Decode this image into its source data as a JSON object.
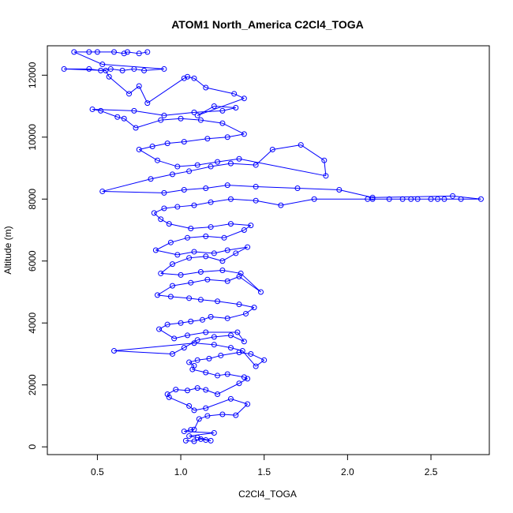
{
  "chart_data": {
    "type": "scatter",
    "title": "ATOM1 North_America C2Cl4_TOGA",
    "xlabel": "C2Cl4_TOGA",
    "ylabel": "Altitude (m)",
    "xlim": [
      0.2,
      2.85
    ],
    "ylim": [
      -250,
      12950
    ],
    "xticks": [
      0.5,
      1.0,
      1.5,
      2.0,
      2.5
    ],
    "xtick_labels": [
      "0.5",
      "1.0",
      "1.5",
      "2.0",
      "2.5"
    ],
    "yticks": [
      0,
      2000,
      4000,
      6000,
      8000,
      10000,
      12000
    ],
    "ytick_labels": [
      "0",
      "2000",
      "4000",
      "6000",
      "8000",
      "10000",
      "12000"
    ],
    "grid": false,
    "color": "#0000ff",
    "series": [
      {
        "points": [
          [
            1.03,
            200
          ],
          [
            1.08,
            180
          ],
          [
            1.12,
            250
          ],
          [
            1.15,
            220
          ],
          [
            1.18,
            200
          ],
          [
            1.1,
            300
          ],
          [
            1.05,
            350
          ],
          [
            1.2,
            450
          ],
          [
            1.02,
            500
          ],
          [
            1.06,
            550
          ],
          [
            1.08,
            560
          ],
          [
            1.11,
            900
          ],
          [
            1.16,
            1000
          ],
          [
            1.25,
            1050
          ],
          [
            1.33,
            1020
          ],
          [
            1.4,
            1380
          ],
          [
            1.3,
            1550
          ],
          [
            1.15,
            1250
          ],
          [
            1.08,
            1180
          ],
          [
            1.05,
            1320
          ],
          [
            0.93,
            1600
          ],
          [
            0.92,
            1700
          ],
          [
            0.97,
            1850
          ],
          [
            1.04,
            1820
          ],
          [
            1.1,
            1900
          ],
          [
            1.15,
            1840
          ],
          [
            1.22,
            1700
          ],
          [
            1.35,
            2050
          ],
          [
            1.4,
            2200
          ],
          [
            1.38,
            2250
          ],
          [
            1.28,
            2350
          ],
          [
            1.22,
            2300
          ],
          [
            1.15,
            2400
          ],
          [
            1.07,
            2500
          ],
          [
            1.08,
            2620
          ],
          [
            1.05,
            2730
          ],
          [
            1.1,
            2800
          ],
          [
            1.17,
            2850
          ],
          [
            1.24,
            2950
          ],
          [
            1.35,
            3050
          ],
          [
            1.42,
            3000
          ],
          [
            1.5,
            2800
          ],
          [
            1.45,
            2600
          ],
          [
            1.37,
            3100
          ],
          [
            1.3,
            3200
          ],
          [
            1.2,
            3300
          ],
          [
            1.08,
            3350
          ],
          [
            0.6,
            3100
          ],
          [
            0.95,
            3000
          ],
          [
            1.02,
            3200
          ],
          [
            1.1,
            3450
          ],
          [
            1.2,
            3550
          ],
          [
            1.3,
            3600
          ],
          [
            1.38,
            3400
          ],
          [
            1.34,
            3700
          ],
          [
            1.15,
            3700
          ],
          [
            1.04,
            3600
          ],
          [
            0.96,
            3500
          ],
          [
            0.87,
            3800
          ],
          [
            0.92,
            3950
          ],
          [
            1.0,
            4000
          ],
          [
            1.06,
            4050
          ],
          [
            1.13,
            4100
          ],
          [
            1.18,
            4200
          ],
          [
            1.28,
            4150
          ],
          [
            1.39,
            4300
          ],
          [
            1.44,
            4500
          ],
          [
            1.35,
            4600
          ],
          [
            1.22,
            4700
          ],
          [
            1.12,
            4750
          ],
          [
            1.05,
            4800
          ],
          [
            0.94,
            4850
          ],
          [
            0.86,
            4900
          ],
          [
            0.95,
            5200
          ],
          [
            1.06,
            5300
          ],
          [
            1.16,
            5400
          ],
          [
            1.28,
            5350
          ],
          [
            1.35,
            5500
          ],
          [
            1.48,
            5000
          ],
          [
            1.36,
            5600
          ],
          [
            1.25,
            5700
          ],
          [
            1.12,
            5650
          ],
          [
            1.0,
            5550
          ],
          [
            0.88,
            5600
          ],
          [
            0.95,
            5900
          ],
          [
            1.05,
            6100
          ],
          [
            1.15,
            6150
          ],
          [
            1.25,
            6000
          ],
          [
            1.33,
            6250
          ],
          [
            1.4,
            6450
          ],
          [
            1.28,
            6350
          ],
          [
            1.2,
            6250
          ],
          [
            1.08,
            6300
          ],
          [
            0.98,
            6200
          ],
          [
            0.85,
            6350
          ],
          [
            0.94,
            6600
          ],
          [
            1.04,
            6750
          ],
          [
            1.15,
            6800
          ],
          [
            1.26,
            6750
          ],
          [
            1.38,
            7000
          ],
          [
            1.42,
            7150
          ],
          [
            1.3,
            7200
          ],
          [
            1.18,
            7100
          ],
          [
            1.06,
            7050
          ],
          [
            0.93,
            7200
          ],
          [
            0.88,
            7350
          ],
          [
            0.84,
            7550
          ],
          [
            0.9,
            7700
          ],
          [
            0.98,
            7750
          ],
          [
            1.08,
            7800
          ],
          [
            1.18,
            7900
          ],
          [
            1.3,
            8000
          ],
          [
            1.45,
            7950
          ],
          [
            1.6,
            7800
          ],
          [
            1.8,
            8000
          ],
          [
            2.12,
            8000
          ],
          [
            2.15,
            8000
          ],
          [
            2.25,
            8000
          ],
          [
            2.33,
            8000
          ],
          [
            2.38,
            8000
          ],
          [
            2.42,
            8000
          ],
          [
            2.5,
            8000
          ],
          [
            2.54,
            8000
          ],
          [
            2.58,
            8000
          ],
          [
            2.68,
            8000
          ],
          [
            2.8,
            8000
          ],
          [
            2.63,
            8100
          ],
          [
            2.15,
            8050
          ],
          [
            1.95,
            8300
          ],
          [
            1.7,
            8350
          ],
          [
            1.45,
            8400
          ],
          [
            1.28,
            8450
          ],
          [
            1.15,
            8350
          ],
          [
            1.02,
            8300
          ],
          [
            0.9,
            8200
          ],
          [
            0.53,
            8250
          ],
          [
            0.82,
            8650
          ],
          [
            0.95,
            8800
          ],
          [
            1.05,
            8900
          ],
          [
            1.18,
            9050
          ],
          [
            1.3,
            9150
          ],
          [
            1.45,
            9100
          ],
          [
            1.55,
            9600
          ],
          [
            1.72,
            9750
          ],
          [
            1.86,
            9250
          ],
          [
            1.87,
            8750
          ],
          [
            1.35,
            9300
          ],
          [
            1.22,
            9200
          ],
          [
            1.1,
            9100
          ],
          [
            0.98,
            9050
          ],
          [
            0.86,
            9250
          ],
          [
            0.75,
            9600
          ],
          [
            0.83,
            9700
          ],
          [
            0.92,
            9800
          ],
          [
            1.02,
            9850
          ],
          [
            1.16,
            9950
          ],
          [
            1.28,
            10000
          ],
          [
            1.38,
            10100
          ],
          [
            1.25,
            10450
          ],
          [
            1.12,
            10550
          ],
          [
            1.0,
            10600
          ],
          [
            0.88,
            10550
          ],
          [
            0.73,
            10300
          ],
          [
            0.66,
            10600
          ],
          [
            0.62,
            10650
          ],
          [
            0.52,
            10850
          ],
          [
            0.47,
            10900
          ],
          [
            0.72,
            10850
          ],
          [
            0.9,
            10700
          ],
          [
            1.08,
            10800
          ],
          [
            1.25,
            10850
          ],
          [
            1.33,
            10950
          ],
          [
            1.2,
            11000
          ],
          [
            1.1,
            10700
          ],
          [
            1.38,
            11250
          ],
          [
            1.32,
            11400
          ],
          [
            1.15,
            11600
          ],
          [
            1.08,
            11900
          ],
          [
            1.04,
            11950
          ],
          [
            1.02,
            11900
          ],
          [
            0.8,
            11100
          ],
          [
            0.75,
            11650
          ],
          [
            0.69,
            11400
          ],
          [
            0.57,
            11950
          ],
          [
            0.55,
            12150
          ],
          [
            0.3,
            12200
          ],
          [
            0.45,
            12200
          ],
          [
            0.52,
            12150
          ],
          [
            0.58,
            12200
          ],
          [
            0.65,
            12150
          ],
          [
            0.72,
            12200
          ],
          [
            0.78,
            12150
          ],
          [
            0.9,
            12200
          ],
          [
            0.53,
            12350
          ],
          [
            0.36,
            12750
          ],
          [
            0.45,
            12750
          ],
          [
            0.5,
            12750
          ],
          [
            0.6,
            12750
          ],
          [
            0.66,
            12700
          ],
          [
            0.68,
            12750
          ],
          [
            0.75,
            12700
          ],
          [
            0.8,
            12750
          ]
        ]
      }
    ]
  }
}
